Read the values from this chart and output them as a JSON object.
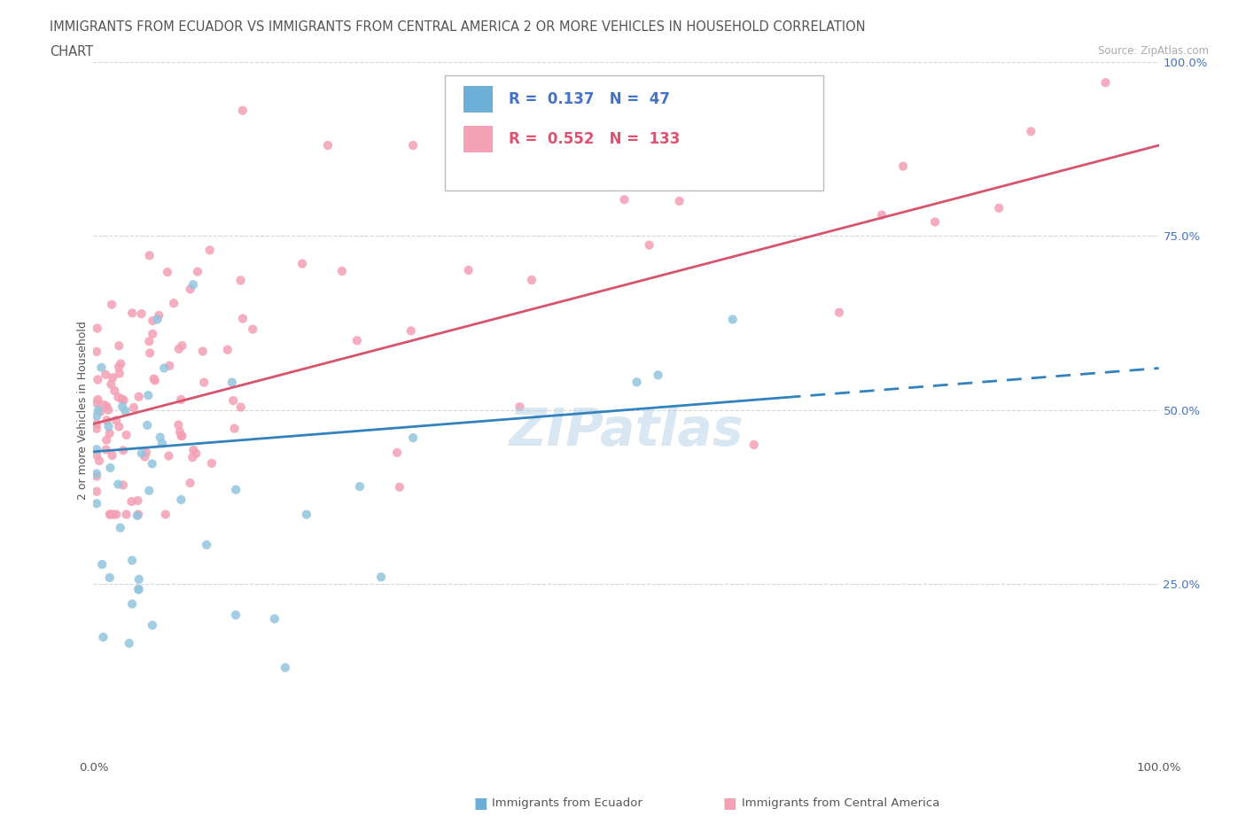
{
  "title_line1": "IMMIGRANTS FROM ECUADOR VS IMMIGRANTS FROM CENTRAL AMERICA 2 OR MORE VEHICLES IN HOUSEHOLD CORRELATION",
  "title_line2": "CHART",
  "source": "Source: ZipAtlas.com",
  "ylabel": "2 or more Vehicles in Household",
  "ecuador_color": "#92c5de",
  "central_america_color": "#f4a0b5",
  "ecuador_R": 0.137,
  "ecuador_N": 47,
  "central_america_R": 0.552,
  "central_america_N": 133,
  "ecuador_trend_color": "#3182bd",
  "central_america_trend_color": "#d6546e",
  "watermark": "ZIPatlas",
  "ecuador_legend_color": "#6baed6",
  "ca_legend_color": "#f4a0b5",
  "legend_text_color_blue": "#4472c4",
  "legend_text_color_pink": "#e05070",
  "right_axis_color": "#4472c4",
  "grid_color": "#cccccc",
  "title_color": "#555555",
  "source_color": "#aaaaaa"
}
